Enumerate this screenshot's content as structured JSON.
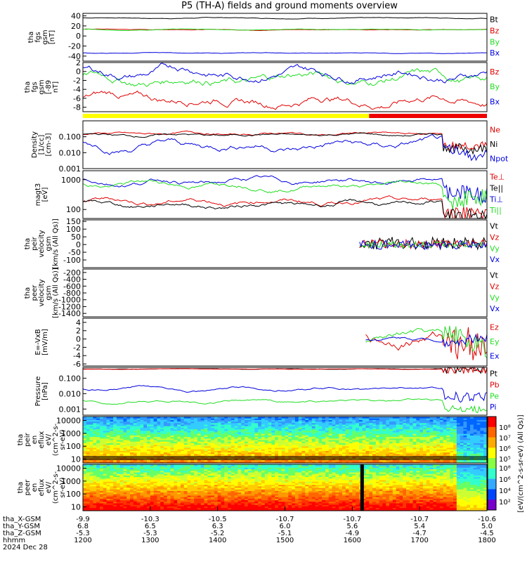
{
  "title": "P5 (TH-A) fields and ground moments overview",
  "colors": {
    "black": "#000000",
    "red": "#e00000",
    "green": "#22dd22",
    "blue": "#0000dd",
    "bar_yellow": "#ffff00",
    "bar_red": "#ee0000"
  },
  "chart_data": [
    {
      "type": "line",
      "ylabel": [
        "tha",
        "fgs",
        "gsm",
        "[nT]"
      ],
      "ylim": [
        -50,
        45
      ],
      "yticks": [
        40,
        20,
        0,
        -20,
        -40
      ],
      "series": [
        {
          "name": "Bt",
          "color": "black",
          "base": 36,
          "amp": 1.0
        },
        {
          "name": "Bz",
          "color": "red",
          "base": 13,
          "amp": 0.8
        },
        {
          "name": "By",
          "color": "green",
          "base": 13,
          "amp": 0.8
        },
        {
          "name": "Bx",
          "color": "blue",
          "base": -34,
          "amp": 0.8
        }
      ]
    },
    {
      "type": "line",
      "ylabel": [
        "tha",
        "fgs",
        "gsm",
        "[-89",
        "nT]"
      ],
      "ylim": [
        -9,
        2
      ],
      "yticks": [
        2,
        0,
        -2,
        -4,
        -6,
        -8
      ],
      "series": [
        {
          "name": "Bz",
          "color": "red",
          "base": -6,
          "amp": 1.2
        },
        {
          "name": "By",
          "color": "green",
          "base": -1.5,
          "amp": 1.3
        },
        {
          "name": "Bx",
          "color": "blue",
          "base": 0,
          "amp": 1.2
        }
      ]
    },
    {
      "type": "line",
      "ylabel": [
        "Density",
        "[1/cc]",
        "[cm-3]"
      ],
      "scale": "log",
      "ylim": [
        0.001,
        1.0
      ],
      "yticks": [
        "0.100",
        "0.010",
        "0.001"
      ],
      "series": [
        {
          "name": "Ne",
          "color": "red",
          "base": 0.15,
          "amp": 0.3
        },
        {
          "name": "Ni",
          "color": "black",
          "base": 0.13,
          "amp": 0.3
        },
        {
          "name": "Npot",
          "color": "blue",
          "base": 0.03,
          "amp": 0.8
        }
      ]
    },
    {
      "type": "line",
      "ylabel": [
        "magt3",
        "[eV]"
      ],
      "scale": "log",
      "ylim": [
        50,
        2000
      ],
      "yticks": [
        "1000",
        "100"
      ],
      "series": [
        {
          "name": "Te⊥",
          "color": "red",
          "base": 200,
          "amp": 0.3
        },
        {
          "name": "Te||",
          "color": "black",
          "base": 150,
          "amp": 0.3
        },
        {
          "name": "Ti⊥",
          "color": "blue",
          "base": 900,
          "amp": 0.3
        },
        {
          "name": "Ti||",
          "color": "green",
          "base": 700,
          "amp": 0.3
        }
      ]
    },
    {
      "type": "line",
      "ylabel": [
        "tha",
        "peir",
        "velocity",
        "gsm",
        "[km/s (All Qs)]"
      ],
      "ylim": [
        -150,
        160
      ],
      "yticks": [
        150,
        100,
        50,
        0,
        -50,
        -100
      ],
      "series": [
        {
          "name": "Vt",
          "color": "black",
          "base": 30,
          "amp": 40
        },
        {
          "name": "Vz",
          "color": "red",
          "base": 10,
          "amp": 30
        },
        {
          "name": "Vy",
          "color": "green",
          "base": 0,
          "amp": 20
        },
        {
          "name": "Vx",
          "color": "blue",
          "base": -10,
          "amp": 30
        }
      ]
    },
    {
      "type": "line",
      "ylabel": [
        "tha",
        "peer",
        "velocity",
        "gsm",
        "[km/s (All Qs)]"
      ],
      "ylim": [
        -1500,
        -100
      ],
      "yticks": [
        -200,
        -400,
        -600,
        -800,
        -1000,
        -1200,
        -1400
      ],
      "series": [
        {
          "name": "Vt",
          "color": "black"
        },
        {
          "name": "Vz",
          "color": "red"
        },
        {
          "name": "Vy",
          "color": "green"
        },
        {
          "name": "Vx",
          "color": "blue"
        }
      ]
    },
    {
      "type": "line",
      "ylabel": [
        "E=-VxB",
        "[mV/m]"
      ],
      "ylim": [
        -6.5,
        5
      ],
      "yticks": [
        4,
        2,
        0,
        -2,
        -4,
        -6
      ],
      "series": [
        {
          "name": "Ez",
          "color": "red",
          "base": 0,
          "amp": 1.8
        },
        {
          "name": "Ey",
          "color": "green",
          "base": 0,
          "amp": 1.2
        },
        {
          "name": "Ex",
          "color": "blue",
          "base": 0,
          "amp": 0.5
        }
      ]
    },
    {
      "type": "line",
      "ylabel": [
        "Pressure",
        "[nPa]"
      ],
      "scale": "log",
      "ylim": [
        0.0004,
        0.5
      ],
      "yticks": [
        "0.100",
        "0.010",
        "0.001"
      ],
      "series": [
        {
          "name": "Pt",
          "color": "black",
          "base": 0.4,
          "amp": 0.05
        },
        {
          "name": "Pb",
          "color": "red",
          "base": 0.38,
          "amp": 0.05
        },
        {
          "name": "Pe",
          "color": "green",
          "base": 0.003,
          "amp": 0.3
        },
        {
          "name": "Pi",
          "color": "blue",
          "base": 0.02,
          "amp": 0.3
        }
      ]
    },
    {
      "type": "heatmap",
      "ylabel": [
        "tha",
        "peir",
        "en",
        "eflux",
        "eV/",
        "(cm^2-s-",
        "sr-eV)"
      ],
      "scale": "log",
      "ylim": [
        5,
        20000
      ],
      "yticks": [
        "10000",
        "1000",
        "100",
        "10"
      ]
    },
    {
      "type": "heatmap",
      "ylabel": [
        "tha",
        "peer",
        "en",
        "eflux",
        "eV/",
        "(cm^2-s-",
        "sr-eV)"
      ],
      "scale": "log",
      "ylim": [
        5,
        20000
      ],
      "yticks": [
        "10000",
        "1000",
        "100",
        "10"
      ]
    }
  ],
  "status_bar": [
    {
      "from": "1200",
      "to": "1625",
      "color": "bar_yellow"
    },
    {
      "from": "1625",
      "to": "1800",
      "color": "bar_red"
    }
  ],
  "colorbar": {
    "label": "[eV/(cm^2-s-sr-eV) (All Qs)]",
    "ticks_upper": [
      "10⁸",
      "10⁷",
      "10⁶",
      "10⁵"
    ],
    "ticks_lower": [
      "10⁸",
      "10⁶",
      "10⁴",
      "10²"
    ]
  },
  "x_axis": {
    "row_labels": [
      "tha_X-GSM",
      "tha_Y-GSM",
      "tha_Z-GSM",
      "hhmm",
      "2024 Dec 28"
    ],
    "ticks": [
      {
        "x": "-9.9",
        "y": "6.8",
        "z": "-5.3",
        "t": "1200"
      },
      {
        "x": "-10.3",
        "y": "6.5",
        "z": "-5.3",
        "t": "1300"
      },
      {
        "x": "-10.5",
        "y": "6.3",
        "z": "-5.2",
        "t": "1400"
      },
      {
        "x": "-10.7",
        "y": "6.0",
        "z": "-5.1",
        "t": "1500"
      },
      {
        "x": "-10.7",
        "y": "5.6",
        "z": "-4.9",
        "t": "1600"
      },
      {
        "x": "-10.7",
        "y": "5.4",
        "z": "-4.7",
        "t": "1700"
      },
      {
        "x": "-10.6",
        "y": "5.0",
        "z": "-4.5",
        "t": "1800"
      }
    ]
  }
}
